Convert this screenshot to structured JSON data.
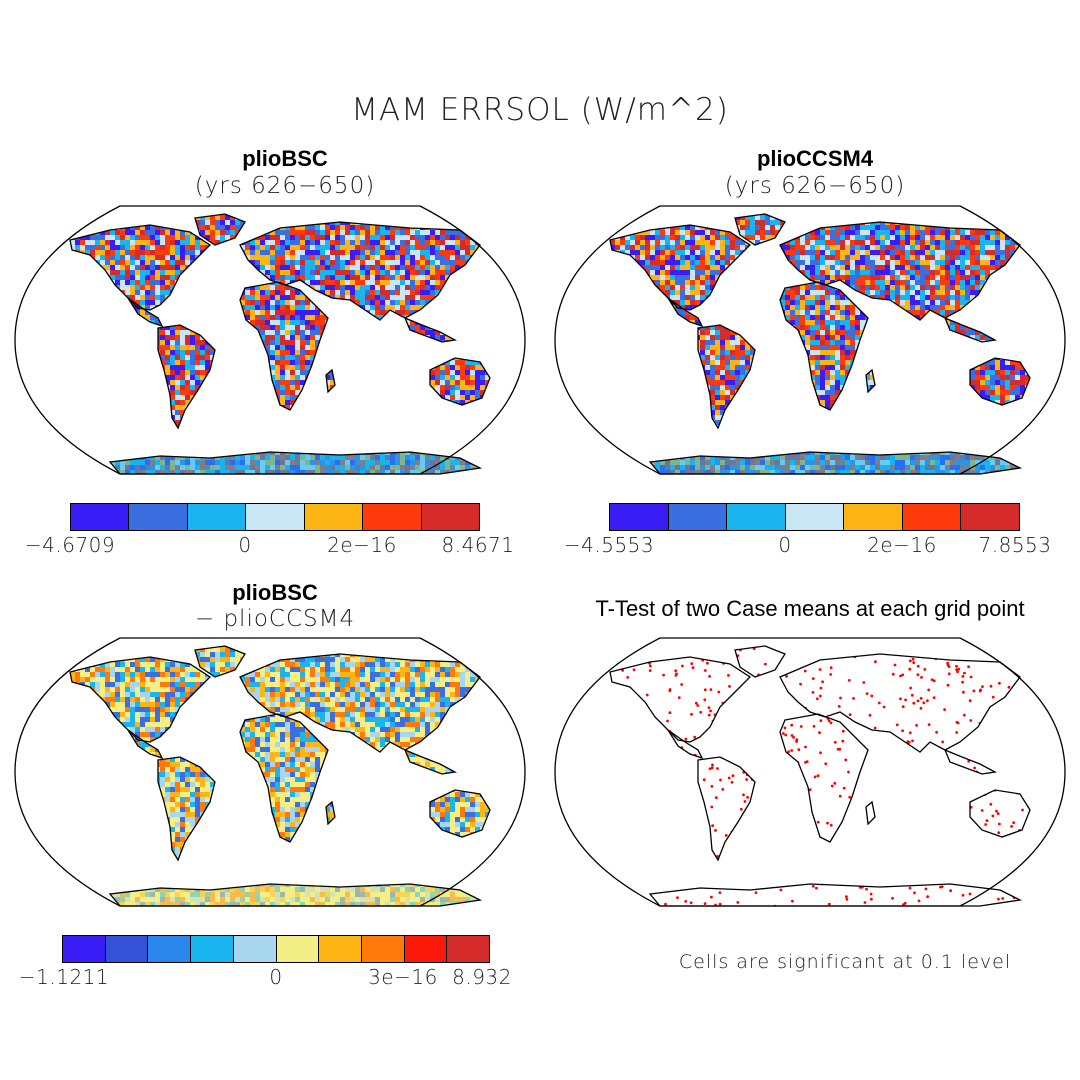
{
  "title": "MAM ERRSOL (W/m^2)",
  "panels": [
    {
      "id": "pliobsc",
      "title": "plioBSC",
      "subtitle": "(yrs 626−650)",
      "colorbar": {
        "colors": [
          "#3a1cf5",
          "#3b6fe0",
          "#1ab4ef",
          "#c8e6f4",
          "#fdb515",
          "#fd3a0b",
          "#d62b2b"
        ],
        "labels": [
          "−4.6709",
          "0",
          "2e−16",
          "8.4671"
        ]
      },
      "field_palette": [
        "#3a1cf5",
        "#3b6fe0",
        "#1ab4ef",
        "#c8e6f4",
        "#fdb515",
        "#fd3a0b",
        "#d62b2b"
      ]
    },
    {
      "id": "plioccsm4",
      "title": "plioCCSM4",
      "subtitle": "(yrs 626−650)",
      "colorbar": {
        "colors": [
          "#3a1cf5",
          "#3b6fe0",
          "#1ab4ef",
          "#c8e6f4",
          "#fdb515",
          "#fd3a0b",
          "#d62b2b"
        ],
        "labels": [
          "−4.5553",
          "0",
          "2e−16",
          "7.8553"
        ]
      },
      "field_palette": [
        "#3a1cf5",
        "#3b6fe0",
        "#1ab4ef",
        "#c8e6f4",
        "#fdb515",
        "#fd3a0b",
        "#d62b2b"
      ]
    },
    {
      "id": "difference",
      "title": "plioBSC",
      "subtitle": "− plioCCSM4",
      "colorbar": {
        "colors": [
          "#3a1cf5",
          "#3352d8",
          "#2a86ea",
          "#1ab4ef",
          "#a8d6ef",
          "#f3ef86",
          "#fdb515",
          "#fd7a0b",
          "#fb1a0a",
          "#d62b2b"
        ],
        "labels": [
          "−1.1211",
          "0",
          "3e−16",
          "8.932"
        ]
      },
      "field_palette": [
        "#3b6fe0",
        "#1ab4ef",
        "#a8d6ef",
        "#f3ef86",
        "#f3ef86",
        "#fdb515",
        "#fd7a0b"
      ]
    }
  ],
  "ttest": {
    "title": "T-Test of two Case means at each grid point",
    "note": "Cells are significant at 0.1 level",
    "dot_color": "#ff0000"
  }
}
